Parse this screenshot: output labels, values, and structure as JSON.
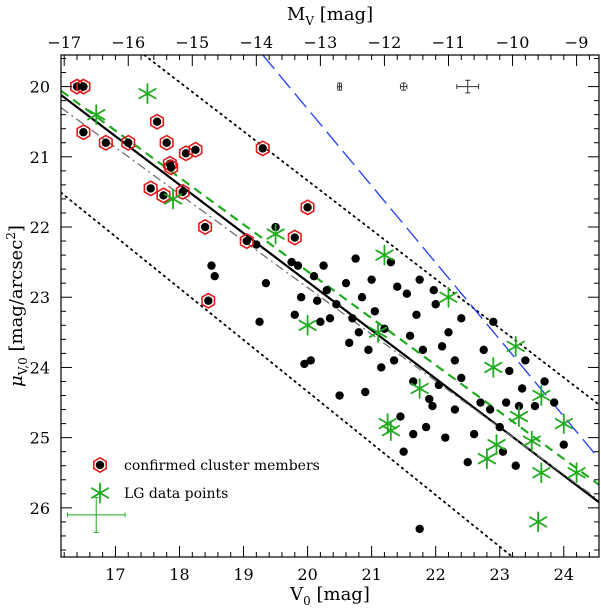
{
  "chart_data": {
    "type": "scatter",
    "xlabel_sub": "0",
    "xlabel_main": "V",
    "xlabel_unit": " [mag]",
    "ylabel": "μ_{V,0} [mag/arcsec²]",
    "ylabel_mu": "μ",
    "ylabel_sub": "V,0",
    "ylabel_unit": " [mag/arcsec",
    "ylabel_sup": "2",
    "ylabel_close": "]",
    "x2label_main": "M",
    "x2label_sub": "V",
    "x2label_unit": " [mag]",
    "xlim": [
      16.15,
      24.55
    ],
    "ylim": [
      26.7,
      19.55
    ],
    "x2_offset": 33.2,
    "x_ticks": [
      17,
      18,
      19,
      20,
      21,
      22,
      23,
      24
    ],
    "x_tick_labels": [
      "17",
      "18",
      "19",
      "20",
      "21",
      "22",
      "23",
      "24"
    ],
    "y_ticks": [
      20,
      21,
      22,
      23,
      24,
      25,
      26
    ],
    "y_tick_labels": [
      "20",
      "21",
      "22",
      "23",
      "24",
      "25",
      "26"
    ],
    "x2_ticks": [
      -17,
      -16,
      -15,
      -14,
      -13,
      -12,
      -11,
      -10,
      -9
    ],
    "x2_tick_labels": [
      "−17",
      "−16",
      "−15",
      "−14",
      "−13",
      "−12",
      "−11",
      "−10",
      "−9"
    ],
    "legend": {
      "placement": "bottom-left",
      "entries": [
        {
          "label": "confirmed cluster members",
          "marker": "hexagon-dot",
          "color": "#e31a1c"
        },
        {
          "label": "LG data points",
          "marker": "star",
          "color": "#1faa1f"
        }
      ]
    },
    "colors": {
      "members": "#e31a1c",
      "lg": "#1faa1f",
      "dashed_blue": "#1f3cff",
      "dashdot": "#707070",
      "dashed_green": "#1faa1f"
    },
    "lines": [
      {
        "name": "fit",
        "style": "solid",
        "color": "#000000",
        "points": [
          [
            16.15,
            20.12
          ],
          [
            24.55,
            25.92
          ]
        ]
      },
      {
        "name": "upper-bound",
        "style": "dotted",
        "color": "#000000",
        "points": [
          [
            17.45,
            19.55
          ],
          [
            24.55,
            24.53
          ]
        ]
      },
      {
        "name": "lower-bound",
        "style": "dotted",
        "color": "#000000",
        "points": [
          [
            16.15,
            21.51
          ],
          [
            23.2,
            26.7
          ]
        ]
      },
      {
        "name": "green-fit",
        "style": "dashed",
        "color": "#1faa1f",
        "points": [
          [
            16.15,
            20.06
          ],
          [
            24.55,
            25.67
          ]
        ]
      },
      {
        "name": "grey-fit",
        "style": "dashdot",
        "color": "#707070",
        "points": [
          [
            16.15,
            20.3
          ],
          [
            24.55,
            25.89
          ]
        ]
      },
      {
        "name": "blue-limit",
        "style": "longdash",
        "color": "#1f3cff",
        "points": [
          [
            19.3,
            19.55
          ],
          [
            24.55,
            25.3
          ]
        ]
      }
    ],
    "error_bars": [
      {
        "x": 20.5,
        "y": 20.0,
        "xerr": 0.03,
        "yerr": 0.05
      },
      {
        "x": 21.5,
        "y": 20.0,
        "xerr": 0.05,
        "yerr": 0.05
      },
      {
        "x": 22.5,
        "y": 20.0,
        "xerr": 0.17,
        "yerr": 0.09
      },
      {
        "x": 16.7,
        "y": 26.1,
        "xerr": 0.45,
        "yerr": 0.25
      }
    ],
    "series": [
      {
        "name": "confirmed cluster members",
        "marker": "hexagon-dot",
        "points": [
          [
            16.4,
            20.0
          ],
          [
            16.5,
            20.0
          ],
          [
            16.5,
            20.65
          ],
          [
            16.85,
            20.8
          ],
          [
            17.2,
            20.8
          ],
          [
            17.55,
            21.45
          ],
          [
            17.65,
            20.5
          ],
          [
            17.75,
            21.55
          ],
          [
            17.8,
            20.8
          ],
          [
            17.85,
            21.1
          ],
          [
            17.87,
            21.15
          ],
          [
            18.05,
            21.5
          ],
          [
            18.1,
            20.95
          ],
          [
            18.25,
            20.9
          ],
          [
            18.4,
            22.0
          ],
          [
            18.45,
            23.05
          ],
          [
            19.05,
            22.2
          ],
          [
            19.3,
            20.88
          ],
          [
            19.8,
            22.15
          ],
          [
            20.0,
            21.72
          ]
        ]
      },
      {
        "name": "LG data points",
        "marker": "star",
        "points": [
          [
            16.7,
            20.4
          ],
          [
            17.5,
            20.1
          ],
          [
            17.9,
            21.6
          ],
          [
            19.5,
            22.1
          ],
          [
            20.0,
            23.4
          ],
          [
            21.1,
            23.5
          ],
          [
            21.2,
            22.4
          ],
          [
            21.25,
            24.8
          ],
          [
            21.3,
            24.9
          ],
          [
            21.75,
            24.3
          ],
          [
            22.2,
            23.0
          ],
          [
            22.8,
            25.3
          ],
          [
            22.9,
            24.0
          ],
          [
            22.95,
            25.1
          ],
          [
            23.25,
            23.7
          ],
          [
            23.3,
            24.7
          ],
          [
            23.5,
            25.05
          ],
          [
            23.6,
            26.2
          ],
          [
            23.65,
            24.4
          ],
          [
            23.65,
            25.5
          ],
          [
            24.0,
            24.8
          ],
          [
            24.2,
            25.5
          ]
        ]
      },
      {
        "name": "dwarf galaxies",
        "marker": "dot",
        "points": [
          [
            18.5,
            22.55
          ],
          [
            18.55,
            22.7
          ],
          [
            19.2,
            22.25
          ],
          [
            19.25,
            23.35
          ],
          [
            19.35,
            22.8
          ],
          [
            19.5,
            22.0
          ],
          [
            19.75,
            22.5
          ],
          [
            19.8,
            23.25
          ],
          [
            19.85,
            22.55
          ],
          [
            19.9,
            23.0
          ],
          [
            19.95,
            23.95
          ],
          [
            20.05,
            23.9
          ],
          [
            20.1,
            22.7
          ],
          [
            20.15,
            23.05
          ],
          [
            20.2,
            23.35
          ],
          [
            20.25,
            22.55
          ],
          [
            20.3,
            22.9
          ],
          [
            20.35,
            23.3
          ],
          [
            20.45,
            23.1
          ],
          [
            20.5,
            24.4
          ],
          [
            20.6,
            22.8
          ],
          [
            20.65,
            23.65
          ],
          [
            20.7,
            23.3
          ],
          [
            20.75,
            22.45
          ],
          [
            20.8,
            23.5
          ],
          [
            20.85,
            23.0
          ],
          [
            20.9,
            24.35
          ],
          [
            20.95,
            23.75
          ],
          [
            21.0,
            22.75
          ],
          [
            21.05,
            23.2
          ],
          [
            21.15,
            24.0
          ],
          [
            21.2,
            23.45
          ],
          [
            21.3,
            22.5
          ],
          [
            21.35,
            23.9
          ],
          [
            21.4,
            22.85
          ],
          [
            21.45,
            24.7
          ],
          [
            21.5,
            25.2
          ],
          [
            21.55,
            22.95
          ],
          [
            21.6,
            23.55
          ],
          [
            21.65,
            24.2
          ],
          [
            21.65,
            24.95
          ],
          [
            21.7,
            23.25
          ],
          [
            21.75,
            22.75
          ],
          [
            21.75,
            26.3
          ],
          [
            21.8,
            23.75
          ],
          [
            21.85,
            24.85
          ],
          [
            21.9,
            24.45
          ],
          [
            21.95,
            24.55
          ],
          [
            21.97,
            22.9
          ],
          [
            22.0,
            23.1
          ],
          [
            22.05,
            24.25
          ],
          [
            22.1,
            23.7
          ],
          [
            22.15,
            25.0
          ],
          [
            22.2,
            23.5
          ],
          [
            22.3,
            24.6
          ],
          [
            22.3,
            23.9
          ],
          [
            22.4,
            24.15
          ],
          [
            22.4,
            23.3
          ],
          [
            22.5,
            25.35
          ],
          [
            22.6,
            24.95
          ],
          [
            22.7,
            24.5
          ],
          [
            22.75,
            23.75
          ],
          [
            22.85,
            24.6
          ],
          [
            22.9,
            23.35
          ],
          [
            23.0,
            24.85
          ],
          [
            23.05,
            25.2
          ],
          [
            23.1,
            24.5
          ],
          [
            23.15,
            24.05
          ],
          [
            23.25,
            25.4
          ],
          [
            23.3,
            24.55
          ],
          [
            23.35,
            24.3
          ],
          [
            23.4,
            23.9
          ],
          [
            23.55,
            24.55
          ],
          [
            23.7,
            24.2
          ],
          [
            23.85,
            24.5
          ],
          [
            24.0,
            25.1
          ]
        ]
      }
    ]
  }
}
